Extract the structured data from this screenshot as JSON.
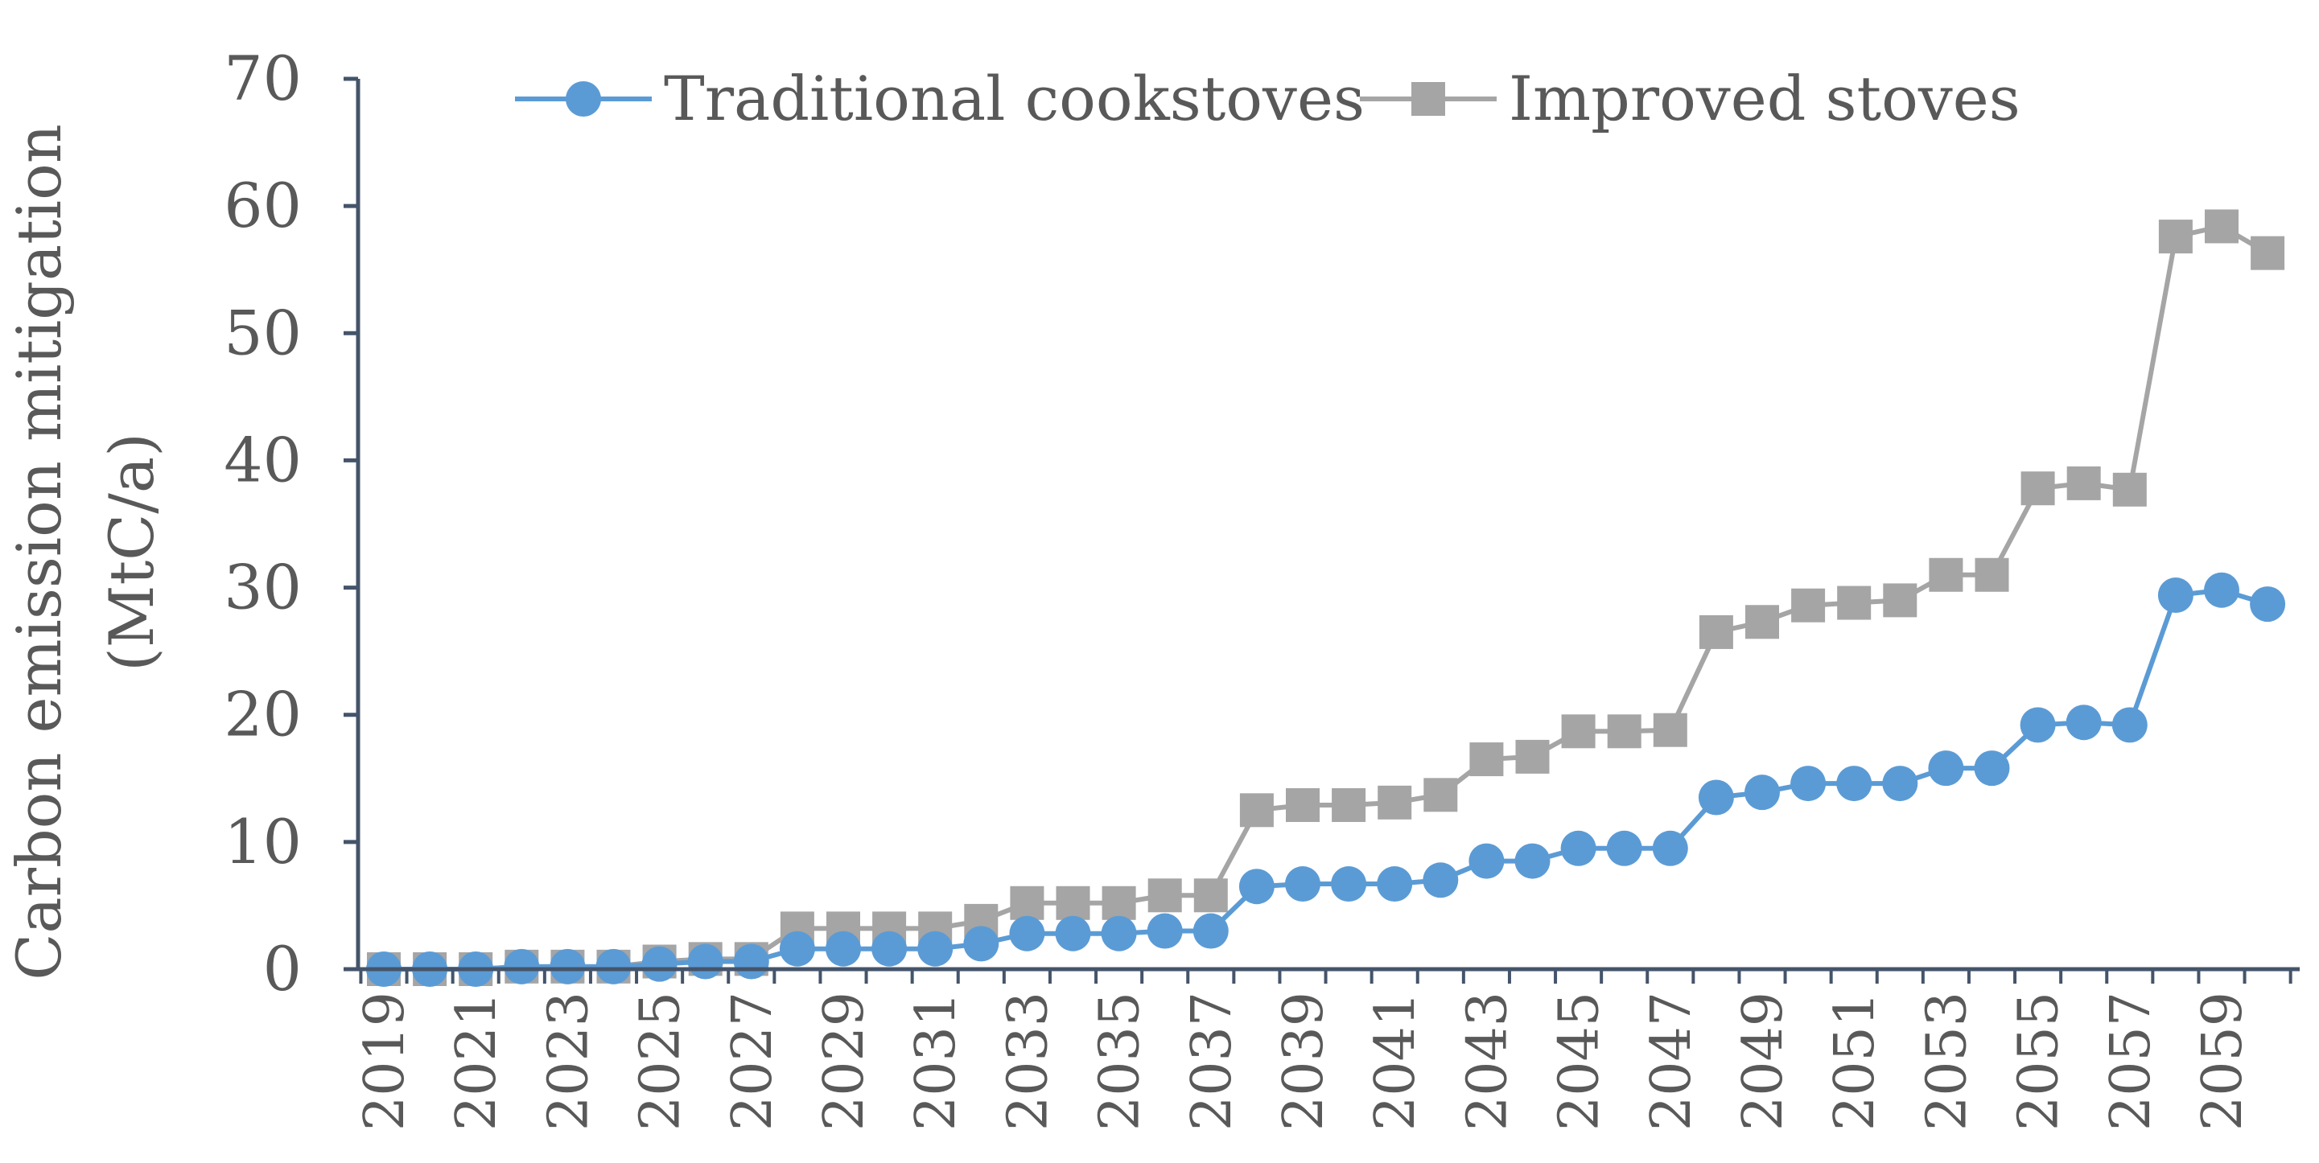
{
  "chart_data": {
    "type": "line",
    "title": "",
    "xlabel": "",
    "ylabel_lines": [
      "Carbon emission mitigation",
      "(MtC/a)"
    ],
    "ylim": [
      0,
      70
    ],
    "yticks": [
      0,
      10,
      20,
      30,
      40,
      50,
      60,
      70
    ],
    "x": [
      2019,
      2020,
      2021,
      2022,
      2023,
      2024,
      2025,
      2026,
      2027,
      2028,
      2029,
      2030,
      2031,
      2032,
      2033,
      2034,
      2035,
      2036,
      2037,
      2038,
      2039,
      2040,
      2041,
      2042,
      2043,
      2044,
      2045,
      2046,
      2047,
      2048,
      2049,
      2050,
      2051,
      2052,
      2053,
      2054,
      2055,
      2056,
      2057,
      2058,
      2059,
      2060
    ],
    "xtick_labels": [
      "2019",
      "2021",
      "2023",
      "2025",
      "2027",
      "2029",
      "2031",
      "2033",
      "2035",
      "2037",
      "2039",
      "2041",
      "2043",
      "2045",
      "2047",
      "2049",
      "2051",
      "2053",
      "2055",
      "2057",
      "2059"
    ],
    "legend_position": "top",
    "grid": false,
    "series": [
      {
        "name": "Traditional cookstoves",
        "color": "#5B9BD5",
        "marker": "circle",
        "values": [
          0,
          0,
          0,
          0.2,
          0.2,
          0.2,
          0.4,
          0.6,
          0.6,
          1.6,
          1.6,
          1.6,
          1.6,
          2.0,
          2.8,
          2.8,
          2.8,
          3.0,
          3.0,
          6.5,
          6.7,
          6.7,
          6.7,
          7.0,
          8.5,
          8.5,
          9.5,
          9.5,
          9.5,
          13.5,
          13.9,
          14.6,
          14.6,
          14.6,
          15.8,
          15.8,
          19.2,
          19.4,
          19.2,
          29.4,
          29.8,
          28.7
        ]
      },
      {
        "name": "Improved stoves",
        "color": "#A5A5A5",
        "marker": "square",
        "values": [
          0,
          0,
          0,
          0.2,
          0.2,
          0.2,
          0.6,
          0.8,
          0.8,
          3.2,
          3.2,
          3.2,
          3.2,
          3.8,
          5.2,
          5.2,
          5.2,
          5.8,
          5.8,
          12.5,
          12.9,
          12.9,
          13.1,
          13.7,
          16.5,
          16.7,
          18.7,
          18.7,
          18.8,
          26.5,
          27.3,
          28.6,
          28.8,
          29.0,
          31.0,
          31.0,
          37.8,
          38.2,
          37.7,
          57.6,
          58.4,
          56.3
        ]
      }
    ]
  }
}
